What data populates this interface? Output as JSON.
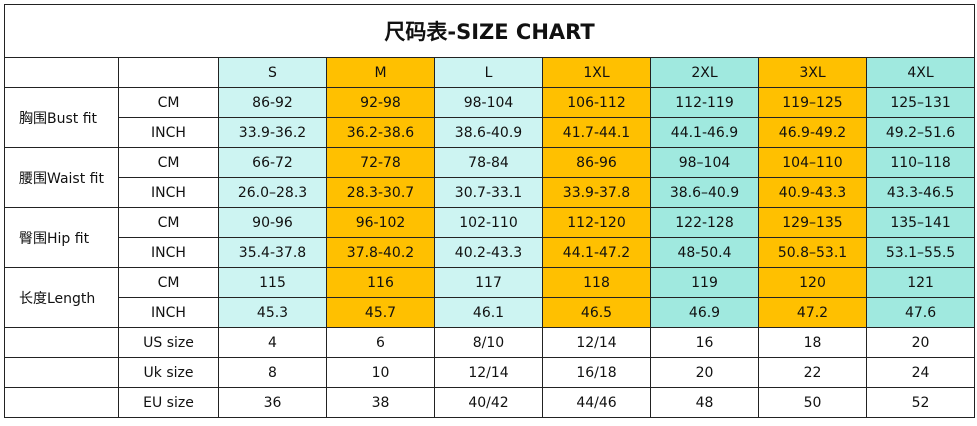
{
  "title": "尺码表-SIZE CHART",
  "sizes": [
    "S",
    "M",
    "L",
    "1XL",
    "2XL",
    "3XL",
    "4XL"
  ],
  "measurements": [
    {
      "label": "胸围Bust fit",
      "rows": [
        {
          "unit": "CM",
          "values": [
            "86-92",
            "92-98",
            "98-104",
            "106-112",
            "112-119",
            "119–125",
            "125–131"
          ]
        },
        {
          "unit": "INCH",
          "values": [
            "33.9-36.2",
            "36.2-38.6",
            "38.6-40.9",
            "41.7-44.1",
            "44.1-46.9",
            "46.9-49.2",
            "49.2–51.6"
          ]
        }
      ]
    },
    {
      "label": "腰围Waist fit",
      "rows": [
        {
          "unit": "CM",
          "values": [
            "66-72",
            "72-78",
            "78-84",
            "86-96",
            "98–104",
            "104–110",
            "110–118"
          ]
        },
        {
          "unit": "INCH",
          "values": [
            "26.0–28.3",
            "28.3-30.7",
            "30.7-33.1",
            "33.9-37.8",
            "38.6–40.9",
            "40.9-43.3",
            "43.3-46.5"
          ]
        }
      ]
    },
    {
      "label": "臀围Hip fit",
      "rows": [
        {
          "unit": "CM",
          "values": [
            "90-96",
            "96-102",
            "102-110",
            "112-120",
            "122-128",
            "129–135",
            "135–141"
          ]
        },
        {
          "unit": "INCH",
          "values": [
            "35.4-37.8",
            "37.8-40.2",
            "40.2-43.3",
            "44.1-47.2",
            "48-50.4",
            "50.8–53.1",
            "53.1–55.5"
          ]
        }
      ]
    },
    {
      "label": "长度Length",
      "rows": [
        {
          "unit": "CM",
          "values": [
            "115",
            "116",
            "117",
            "118",
            "119",
            "120",
            "121"
          ]
        },
        {
          "unit": "INCH",
          "values": [
            "45.3",
            "45.7",
            "46.1",
            "46.5",
            "46.9",
            "47.2",
            "47.6"
          ]
        }
      ]
    }
  ],
  "conversions": [
    {
      "label": "US size",
      "values": [
        "4",
        "6",
        "8/10",
        "12/14",
        "16",
        "18",
        "20"
      ]
    },
    {
      "label": "Uk size",
      "values": [
        "8",
        "10",
        "12/14",
        "16/18",
        "20",
        "22",
        "24"
      ]
    },
    {
      "label": "EU size",
      "values": [
        "36",
        "38",
        "40/42",
        "44/46",
        "48",
        "50",
        "52"
      ]
    }
  ]
}
